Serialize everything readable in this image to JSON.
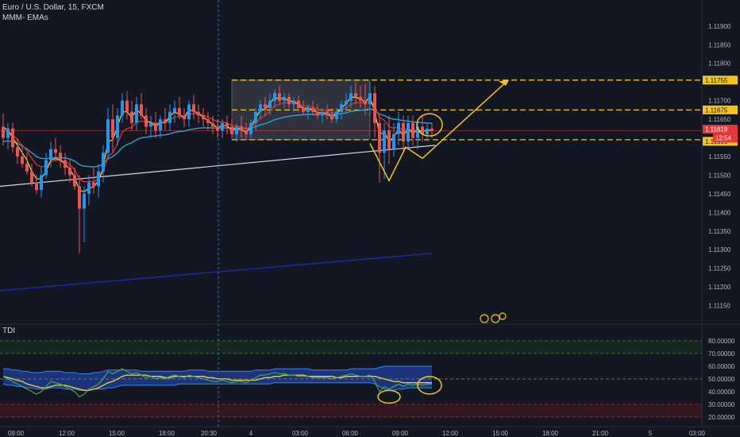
{
  "header": {
    "symbol_line": "Euro / U.S. Dollar, 15, FXCM",
    "indicator_line": "MMM- EMAs",
    "sub_indicator": "TDI"
  },
  "colors": {
    "background": "#131722",
    "up_candle": "#2196f3",
    "down_candle": "#ef5350",
    "ema_fast": "#f5d33a",
    "ema_mid": "#d32f2f",
    "ema_slow": "#29a3d8",
    "ema_long": "#d8d8d8",
    "trend_line": "#1a2db5",
    "annotation": "#f5c518",
    "price_tag": "#e53935",
    "tdi_band": "#1e3a8a"
  },
  "chart_data": {
    "type": "candlestick",
    "price_axis": {
      "range": [
        1.111,
        1.1197
      ],
      "ticks": [
        "1.11900",
        "1.11850",
        "1.11800",
        "1.11700",
        "1.11650",
        "1.11550",
        "1.11500",
        "1.11450",
        "1.11400",
        "1.11350",
        "1.11300",
        "1.11250",
        "1.11200",
        "1.11150"
      ]
    },
    "time_axis": {
      "labels": [
        "09:00",
        "12:00",
        "15:00",
        "18:00",
        "20:30",
        "4",
        "03:00",
        "06:00",
        "09:00",
        "12:00",
        "15:00",
        "18:00",
        "21:00",
        "5",
        "03:00"
      ]
    },
    "levels": [
      {
        "label": "1.11755",
        "value": 1.11755
      },
      {
        "label": "1.11675",
        "value": 1.11675
      },
      {
        "label": "1.11595",
        "value": 1.11595
      }
    ],
    "current_price": {
      "label": "1.11619",
      "value": 1.11619,
      "countdown": "12:54"
    },
    "range_box": {
      "from_bar": 48,
      "to_bar": 77,
      "top": 1.11755,
      "bottom": 1.11595
    },
    "candles": [
      [
        1.1163,
        1.11665,
        1.1158,
        1.116
      ],
      [
        1.116,
        1.1164,
        1.1157,
        1.11625
      ],
      [
        1.11625,
        1.1164,
        1.1156,
        1.11575
      ],
      [
        1.11575,
        1.116,
        1.1153,
        1.1155
      ],
      [
        1.1155,
        1.1158,
        1.1152,
        1.1153
      ],
      [
        1.1153,
        1.1156,
        1.115,
        1.1151
      ],
      [
        1.1151,
        1.1153,
        1.1147,
        1.1148
      ],
      [
        1.1148,
        1.115,
        1.1145,
        1.1146
      ],
      [
        1.1146,
        1.1152,
        1.1144,
        1.115
      ],
      [
        1.115,
        1.1156,
        1.1149,
        1.1154
      ],
      [
        1.1154,
        1.1159,
        1.1152,
        1.1157
      ],
      [
        1.1157,
        1.116,
        1.1154,
        1.1156
      ],
      [
        1.1156,
        1.1158,
        1.1152,
        1.1154
      ],
      [
        1.1154,
        1.1156,
        1.115,
        1.1152
      ],
      [
        1.1152,
        1.1154,
        1.1148,
        1.115
      ],
      [
        1.115,
        1.1152,
        1.1146,
        1.1147
      ],
      [
        1.1147,
        1.115,
        1.1129,
        1.1141
      ],
      [
        1.1141,
        1.1147,
        1.1132,
        1.1145
      ],
      [
        1.1145,
        1.115,
        1.1142,
        1.1148
      ],
      [
        1.1148,
        1.1152,
        1.1145,
        1.1147
      ],
      [
        1.1147,
        1.1153,
        1.1144,
        1.1151
      ],
      [
        1.1151,
        1.1158,
        1.1148,
        1.1156
      ],
      [
        1.1156,
        1.1168,
        1.1154,
        1.1165
      ],
      [
        1.1165,
        1.1169,
        1.1156,
        1.116
      ],
      [
        1.116,
        1.1168,
        1.1158,
        1.1166
      ],
      [
        1.1166,
        1.1172,
        1.1164,
        1.117
      ],
      [
        1.117,
        1.11725,
        1.1165,
        1.1167
      ],
      [
        1.1167,
        1.117,
        1.1162,
        1.1164
      ],
      [
        1.1164,
        1.1171,
        1.1162,
        1.1169
      ],
      [
        1.1169,
        1.1172,
        1.1165,
        1.1166
      ],
      [
        1.1166,
        1.1168,
        1.1161,
        1.1163
      ],
      [
        1.1163,
        1.1166,
        1.116,
        1.1164
      ],
      [
        1.1164,
        1.1167,
        1.116,
        1.1162
      ],
      [
        1.1162,
        1.1166,
        1.116,
        1.1165
      ],
      [
        1.1165,
        1.1168,
        1.1162,
        1.1164
      ],
      [
        1.1164,
        1.1169,
        1.1162,
        1.1167
      ],
      [
        1.1167,
        1.117,
        1.1164,
        1.1168
      ],
      [
        1.1168,
        1.1171,
        1.1165,
        1.1166
      ],
      [
        1.1166,
        1.1168,
        1.1163,
        1.1165
      ],
      [
        1.1165,
        1.117,
        1.1163,
        1.1169
      ],
      [
        1.1169,
        1.11715,
        1.1165,
        1.1167
      ],
      [
        1.1167,
        1.1169,
        1.1164,
        1.1166
      ],
      [
        1.1166,
        1.1168,
        1.1163,
        1.1165
      ],
      [
        1.1165,
        1.1167,
        1.1162,
        1.1164
      ],
      [
        1.1164,
        1.1166,
        1.1161,
        1.1163
      ],
      [
        1.1163,
        1.1165,
        1.116,
        1.1162
      ],
      [
        1.1162,
        1.1165,
        1.116,
        1.1164
      ],
      [
        1.1164,
        1.1166,
        1.1161,
        1.1163
      ],
      [
        1.1163,
        1.1165,
        1.116,
        1.1161
      ],
      [
        1.1161,
        1.1164,
        1.1159,
        1.1163
      ],
      [
        1.1163,
        1.1166,
        1.116,
        1.1162
      ],
      [
        1.1162,
        1.1164,
        1.11595,
        1.1161
      ],
      [
        1.1161,
        1.1165,
        1.116,
        1.1164
      ],
      [
        1.1164,
        1.1168,
        1.1162,
        1.1167
      ],
      [
        1.1167,
        1.117,
        1.1165,
        1.1169
      ],
      [
        1.1169,
        1.1171,
        1.1166,
        1.1168
      ],
      [
        1.1168,
        1.1172,
        1.1166,
        1.117
      ],
      [
        1.117,
        1.1173,
        1.1168,
        1.1172
      ],
      [
        1.1172,
        1.1174,
        1.1169,
        1.117
      ],
      [
        1.117,
        1.1172,
        1.1168,
        1.1171
      ],
      [
        1.1171,
        1.1172,
        1.1168,
        1.1169
      ],
      [
        1.1169,
        1.1171,
        1.1167,
        1.117
      ],
      [
        1.117,
        1.11715,
        1.1167,
        1.1168
      ],
      [
        1.1168,
        1.117,
        1.1166,
        1.1167
      ],
      [
        1.1167,
        1.1169,
        1.1165,
        1.1168
      ],
      [
        1.1168,
        1.117,
        1.1166,
        1.1167
      ],
      [
        1.1167,
        1.1169,
        1.1165,
        1.1166
      ],
      [
        1.1166,
        1.1168,
        1.1164,
        1.1167
      ],
      [
        1.1167,
        1.1169,
        1.1165,
        1.1166
      ],
      [
        1.1166,
        1.1168,
        1.1164,
        1.1165
      ],
      [
        1.1165,
        1.1168,
        1.1164,
        1.1167
      ],
      [
        1.1167,
        1.117,
        1.1165,
        1.1169
      ],
      [
        1.1169,
        1.1172,
        1.1167,
        1.117
      ],
      [
        1.117,
        1.1174,
        1.1168,
        1.1172
      ],
      [
        1.1172,
        1.1175,
        1.1169,
        1.1171
      ],
      [
        1.1171,
        1.1174,
        1.1168,
        1.117
      ],
      [
        1.117,
        1.11745,
        1.1166,
        1.1169
      ],
      [
        1.1169,
        1.1175,
        1.1166,
        1.1172
      ],
      [
        1.1172,
        1.1174,
        1.116,
        1.1164
      ],
      [
        1.1164,
        1.1166,
        1.1148,
        1.1156
      ],
      [
        1.1156,
        1.1164,
        1.1149,
        1.1162
      ],
      [
        1.1162,
        1.1166,
        1.1153,
        1.1157
      ],
      [
        1.1157,
        1.1164,
        1.1155,
        1.1161
      ],
      [
        1.1161,
        1.1167,
        1.1158,
        1.1164
      ],
      [
        1.1164,
        1.1166,
        1.1156,
        1.1159
      ],
      [
        1.1159,
        1.1166,
        1.1157,
        1.1164
      ],
      [
        1.1164,
        1.1166,
        1.1158,
        1.116
      ],
      [
        1.116,
        1.1165,
        1.1157,
        1.1163
      ],
      [
        1.1163,
        1.1166,
        1.1159,
        1.1161
      ],
      [
        1.1161,
        1.1164,
        1.1159,
        1.11625
      ],
      [
        1.11625,
        1.1164,
        1.116,
        1.11619
      ]
    ],
    "ema_fast": [
      1.1163,
      1.1162,
      1.116,
      1.1158,
      1.1156,
      1.1154,
      1.1151,
      1.1149,
      1.1149,
      1.1151,
      1.1154,
      1.11545,
      1.1154,
      1.1153,
      1.11515,
      1.11495,
      1.1146,
      1.11455,
      1.11465,
      1.11468,
      1.11485,
      1.1152,
      1.1159,
      1.11595,
      1.1163,
      1.1167,
      1.1167,
      1.11655,
      1.11675,
      1.11665,
      1.11645,
      1.11642,
      1.1163,
      1.11642,
      1.1164,
      1.11658,
      1.1167,
      1.11662,
      1.11655,
      1.11675,
      1.11672,
      1.11665,
      1.11656,
      1.11646,
      1.11636,
      1.11627,
      1.11634,
      1.11632,
      1.1162,
      1.11626,
      1.11622,
      1.11615,
      1.1163,
      1.11653,
      1.11675,
      1.11677,
      1.11692,
      1.11709,
      1.11704,
      1.11707,
      1.11698,
      1.11699,
      1.11689,
      1.11679,
      1.1168,
      1.11675,
      1.11667,
      1.11669,
      1.11664,
      1.11656,
      1.11664,
      1.1168,
      1.11692,
      1.11709,
      1.11709,
      1.11704,
      1.11696,
      1.1171,
      1.1167,
      1.1161,
      1.11615,
      1.1159,
      1.11602,
      1.11623,
      1.11605,
      1.11625,
      1.11612,
      1.11622,
      1.11616,
      1.11621,
      1.1162
    ],
    "ema_mid": [
      1.1162,
      1.11618,
      1.11608,
      1.11595,
      1.1158,
      1.11565,
      1.11545,
      1.11528,
      1.11522,
      1.11525,
      1.11536,
      1.1154,
      1.1154,
      1.11536,
      1.11528,
      1.11515,
      1.1149,
      1.11482,
      1.11483,
      1.11482,
      1.1149,
      1.1151,
      1.1155,
      1.1156,
      1.11585,
      1.11615,
      1.11625,
      1.11628,
      1.11642,
      1.11645,
      1.11642,
      1.11642,
      1.11638,
      1.11641,
      1.11641,
      1.11648,
      1.11656,
      1.11657,
      1.11656,
      1.11663,
      1.11665,
      1.11664,
      1.11661,
      1.11656,
      1.1165,
      1.11643,
      1.11643,
      1.1164,
      1.11633,
      1.11632,
      1.1163,
      1.11625,
      1.11629,
      1.1164,
      1.11653,
      1.1166,
      1.11672,
      1.11686,
      1.1169,
      1.11695,
      1.11694,
      1.11695,
      1.11691,
      1.11686,
      1.11685,
      1.11682,
      1.11677,
      1.11676,
      1.11673,
      1.11668,
      1.11669,
      1.11674,
      1.1168,
      1.1169,
      1.11694,
      1.11695,
      1.11694,
      1.117,
      1.11685,
      1.11655,
      1.11647,
      1.1163,
      1.11626,
      1.11629,
      1.1162,
      1.11624,
      1.11619,
      1.11621,
      1.11619,
      1.1162,
      1.1162
    ],
    "ema_slow": [
      1.1159,
      1.11592,
      1.1159,
      1.11585,
      1.11578,
      1.1157,
      1.1156,
      1.1155,
      1.11545,
      1.11544,
      1.11546,
      1.11547,
      1.11547,
      1.11546,
      1.11543,
      1.11538,
      1.11528,
      1.11524,
      1.11523,
      1.11522,
      1.11524,
      1.1153,
      1.11544,
      1.1155,
      1.1156,
      1.11574,
      1.11582,
      1.11587,
      1.11595,
      1.116,
      1.11602,
      1.11604,
      1.11605,
      1.11607,
      1.11608,
      1.11611,
      1.11615,
      1.11617,
      1.11618,
      1.11622,
      1.11624,
      1.11626,
      1.11627,
      1.11627,
      1.11627,
      1.11626,
      1.11627,
      1.11627,
      1.11626,
      1.11626,
      1.11626,
      1.11625,
      1.11626,
      1.1163,
      1.11635,
      1.11638,
      1.11643,
      1.11649,
      1.11652,
      1.11656,
      1.11658,
      1.1166,
      1.11661,
      1.11662,
      1.11663,
      1.11663,
      1.11663,
      1.11664,
      1.11664,
      1.11663,
      1.11664,
      1.11665,
      1.11667,
      1.11671,
      1.11673,
      1.11674,
      1.11675,
      1.11678,
      1.11674,
      1.11664,
      1.1166,
      1.11653,
      1.1165,
      1.11649,
      1.11646,
      1.11645,
      1.11643,
      1.11642,
      1.11641,
      1.1164,
      1.11639
    ],
    "ema_long": {
      "start": 1.1147,
      "end": 1.1158
    },
    "trend_line": {
      "start": 1.1119,
      "end": 1.1129,
      "end_bar": 90
    },
    "tdi_axis": {
      "range": [
        15,
        88
      ],
      "ticks": [
        "80.00000",
        "70.00000",
        "60.00000",
        "50.00000",
        "40.00000",
        "30.00000",
        "20.00000"
      ]
    },
    "tdi": {
      "upper_band": [
        58,
        58,
        57,
        57,
        56,
        56,
        55,
        55,
        55,
        56,
        56,
        56,
        56,
        55,
        55,
        55,
        54,
        54,
        54,
        55,
        55,
        56,
        57,
        57,
        57,
        57,
        57,
        57,
        57,
        56,
        56,
        56,
        56,
        56,
        56,
        56,
        56,
        56,
        56,
        57,
        57,
        57,
        57,
        56,
        56,
        56,
        56,
        56,
        56,
        56,
        56,
        56,
        56,
        57,
        57,
        57,
        57,
        58,
        58,
        58,
        58,
        58,
        58,
        58,
        58,
        57,
        57,
        57,
        57,
        57,
        57,
        57,
        57,
        58,
        58,
        58,
        58,
        58,
        58,
        59,
        60,
        60,
        60,
        60,
        60,
        60,
        60,
        60,
        60,
        60,
        60
      ],
      "lower_band": [
        46,
        45,
        45,
        44,
        44,
        43,
        43,
        42,
        42,
        42,
        43,
        43,
        43,
        42,
        42,
        42,
        41,
        41,
        41,
        42,
        42,
        42,
        43,
        43,
        44,
        45,
        45,
        45,
        45,
        45,
        45,
        45,
        45,
        45,
        45,
        45,
        45,
        46,
        46,
        46,
        46,
        46,
        46,
        46,
        46,
        46,
        46,
        46,
        46,
        46,
        46,
        46,
        46,
        46,
        46,
        46,
        46,
        47,
        47,
        47,
        47,
        47,
        47,
        47,
        47,
        47,
        47,
        47,
        47,
        47,
        47,
        47,
        47,
        47,
        47,
        47,
        47,
        47,
        46,
        44,
        42,
        41,
        41,
        42,
        42,
        43,
        43,
        43,
        43,
        43,
        43
      ],
      "rsi": [
        52,
        50,
        48,
        46,
        44,
        42,
        40,
        38,
        40,
        44,
        48,
        47,
        46,
        44,
        42,
        40,
        36,
        38,
        42,
        44,
        46,
        50,
        56,
        54,
        56,
        58,
        56,
        54,
        55,
        53,
        51,
        52,
        50,
        51,
        50,
        52,
        53,
        52,
        51,
        53,
        52,
        51,
        50,
        49,
        48,
        48,
        49,
        48,
        47,
        48,
        48,
        47,
        49,
        51,
        53,
        53,
        54,
        55,
        54,
        54,
        53,
        53,
        52,
        52,
        52,
        51,
        51,
        51,
        51,
        50,
        51,
        52,
        53,
        54,
        53,
        52,
        52,
        53,
        48,
        40,
        44,
        42,
        44,
        46,
        44,
        46,
        45,
        46,
        45,
        46,
        46
      ],
      "signal": [
        52,
        51,
        50,
        49,
        48,
        46,
        45,
        44,
        43,
        43,
        44,
        45,
        45,
        45,
        44,
        43,
        42,
        41,
        41,
        42,
        43,
        45,
        47,
        48,
        50,
        52,
        53,
        53,
        53,
        53,
        53,
        52,
        52,
        52,
        51,
        51,
        52,
        52,
        52,
        52,
        52,
        52,
        52,
        51,
        51,
        50,
        50,
        50,
        49,
        49,
        49,
        49,
        49,
        49,
        50,
        51,
        51,
        52,
        52,
        53,
        53,
        53,
        53,
        53,
        52,
        52,
        52,
        52,
        52,
        52,
        51,
        51,
        52,
        52,
        52,
        52,
        52,
        52,
        52,
        51,
        50,
        49,
        48,
        48,
        47,
        47,
        47,
        47,
        47,
        47,
        47
      ]
    }
  }
}
